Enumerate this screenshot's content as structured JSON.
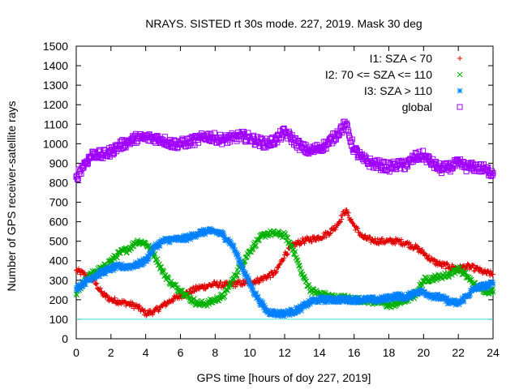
{
  "chart_data": {
    "type": "scatter",
    "title": "NRAYS. SISTED rt 30s mode. 227, 2019. Mask 30 deg",
    "xlabel": "GPS time [hours of doy 227, 2019]",
    "ylabel": "Number of GPS receiver-satellite rays",
    "xlim": [
      0,
      24
    ],
    "ylim": [
      0,
      1500
    ],
    "xticks": [
      0,
      2,
      4,
      6,
      8,
      10,
      12,
      14,
      16,
      18,
      20,
      22,
      24
    ],
    "yticks": [
      0,
      100,
      200,
      300,
      400,
      500,
      600,
      700,
      800,
      900,
      1000,
      1100,
      1200,
      1300,
      1400,
      1500
    ],
    "reference_line": {
      "y": 100,
      "color": "#40e0e0"
    },
    "legend_position": "top-right",
    "series": [
      {
        "name": "I1: SZA < 70",
        "marker": "+",
        "color": "#e00000",
        "x": [
          0,
          0.5,
          1,
          1.5,
          2,
          2.5,
          3,
          3.5,
          4,
          4.5,
          5,
          5.5,
          6,
          6.5,
          7,
          7.5,
          8,
          8.5,
          9,
          9.5,
          10,
          10.5,
          11,
          11.5,
          12,
          12.5,
          13,
          13.5,
          14,
          14.5,
          15,
          15.5,
          16,
          16.5,
          17,
          17.5,
          18,
          18.5,
          19,
          19.5,
          20,
          20.5,
          21,
          21.5,
          22,
          22.5,
          23,
          23.5,
          24
        ],
        "y": [
          350,
          330,
          300,
          230,
          200,
          190,
          180,
          165,
          130,
          140,
          170,
          200,
          220,
          240,
          260,
          270,
          280,
          275,
          280,
          285,
          290,
          300,
          320,
          340,
          430,
          480,
          500,
          510,
          520,
          540,
          580,
          660,
          580,
          520,
          505,
          500,
          500,
          500,
          490,
          470,
          440,
          400,
          380,
          370,
          360,
          370,
          360,
          340,
          330
        ]
      },
      {
        "name": "I2: 70 <= SZA <= 110",
        "marker": "x",
        "color": "#00b000",
        "x": [
          0,
          0.5,
          1,
          1.5,
          2,
          2.5,
          3,
          3.5,
          4,
          4.5,
          5,
          5.5,
          6,
          6.5,
          7,
          7.5,
          8,
          8.5,
          9,
          9.5,
          10,
          10.5,
          11,
          11.5,
          12,
          12.5,
          13,
          13.5,
          14,
          14.5,
          15,
          15.5,
          16,
          16.5,
          17,
          17.5,
          18,
          18.5,
          19,
          19.5,
          20,
          20.5,
          21,
          21.5,
          22,
          22.5,
          23,
          23.5,
          24
        ],
        "y": [
          230,
          300,
          340,
          360,
          400,
          440,
          460,
          500,
          490,
          430,
          340,
          280,
          250,
          210,
          180,
          180,
          200,
          220,
          300,
          380,
          450,
          510,
          540,
          540,
          530,
          460,
          330,
          250,
          230,
          220,
          210,
          210,
          200,
          200,
          190,
          190,
          170,
          180,
          200,
          220,
          300,
          310,
          320,
          330,
          360,
          320,
          270,
          250,
          240
        ]
      },
      {
        "name": "I3: SZA > 110",
        "marker": "*",
        "color": "#0080ff",
        "x": [
          0,
          0.5,
          1,
          1.5,
          2,
          2.5,
          3,
          3.5,
          4,
          4.5,
          5,
          5.5,
          6,
          6.5,
          7,
          7.5,
          8,
          8.5,
          9,
          9.5,
          10,
          10.5,
          11,
          11.5,
          12,
          12.5,
          13,
          13.5,
          14,
          14.5,
          15,
          15.5,
          16,
          16.5,
          17,
          17.5,
          18,
          18.5,
          19,
          19.5,
          20,
          20.5,
          21,
          21.5,
          22,
          22.5,
          23,
          23.5,
          24
        ],
        "y": [
          260,
          290,
          320,
          340,
          360,
          370,
          370,
          380,
          400,
          470,
          500,
          510,
          510,
          520,
          540,
          550,
          550,
          530,
          480,
          380,
          280,
          200,
          140,
          130,
          130,
          140,
          160,
          190,
          200,
          200,
          200,
          200,
          200,
          200,
          200,
          200,
          210,
          220,
          210,
          240,
          240,
          220,
          210,
          190,
          180,
          220,
          260,
          270,
          280
        ]
      },
      {
        "name": "global",
        "marker": "square",
        "color": "#a000ff",
        "x": [
          0,
          0.5,
          1,
          1.5,
          2,
          2.5,
          3,
          3.5,
          4,
          4.5,
          5,
          5.5,
          6,
          6.5,
          7,
          7.5,
          8,
          8.5,
          9,
          9.5,
          10,
          10.5,
          11,
          11.5,
          12,
          12.5,
          13,
          13.5,
          14,
          14.5,
          15,
          15.5,
          16,
          16.5,
          17,
          17.5,
          18,
          18.5,
          19,
          19.5,
          20,
          20.5,
          21,
          21.5,
          22,
          22.5,
          23,
          23.5,
          24
        ],
        "y": [
          830,
          900,
          950,
          940,
          960,
          990,
          1010,
          1030,
          1030,
          1030,
          1020,
          1000,
          1000,
          1010,
          1020,
          1040,
          1030,
          1020,
          1030,
          1040,
          1030,
          1010,
          1000,
          1020,
          1060,
          1020,
          980,
          960,
          980,
          1000,
          1050,
          1100,
          970,
          920,
          900,
          890,
          880,
          890,
          890,
          930,
          940,
          900,
          870,
          880,
          900,
          880,
          880,
          870,
          850
        ]
      }
    ]
  }
}
